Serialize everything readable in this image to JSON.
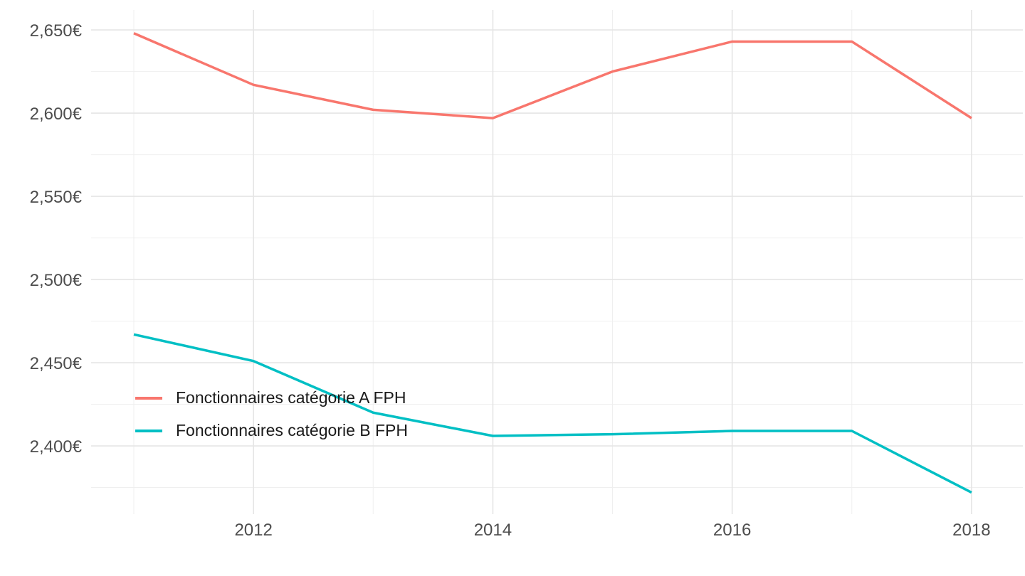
{
  "chart_data": {
    "type": "line",
    "title": "",
    "xlabel": "",
    "ylabel": "",
    "grid": true,
    "legend_position": "inside-left-middle",
    "x": [
      2011,
      2012,
      2013,
      2014,
      2015,
      2016,
      2017,
      2018
    ],
    "series": [
      {
        "name": "Fonctionnaires catégorie A FPH",
        "color": "#F8766D",
        "values": [
          2648,
          2617,
          2602,
          2597,
          2625,
          2643,
          2643,
          2597
        ]
      },
      {
        "name": "Fonctionnaires catégorie B FPH",
        "color": "#00BFC4",
        "values": [
          2467,
          2451,
          2420,
          2406,
          2407,
          2409,
          2409,
          2372
        ]
      }
    ],
    "x_axis": {
      "range": [
        2010.643,
        2018.429
      ],
      "major_ticks": [
        2012,
        2014,
        2016,
        2018
      ],
      "minor_ticks": [
        2011,
        2013,
        2015,
        2017
      ],
      "tick_labels": [
        "2012",
        "2014",
        "2016",
        "2018"
      ]
    },
    "y_axis": {
      "range": [
        2359,
        2662
      ],
      "major_ticks": [
        2400,
        2450,
        2500,
        2550,
        2600,
        2650
      ],
      "minor_ticks": [
        2375,
        2425,
        2475,
        2525,
        2575,
        2625
      ],
      "tick_labels": [
        "2,400€",
        "2,450€",
        "2,500€",
        "2,550€",
        "2,600€",
        "2,650€"
      ]
    }
  },
  "colors": {
    "background": "#ffffff",
    "grid_major": "#e5e5e5",
    "grid_minor": "#efefef",
    "axis_text": "#4d4d4d",
    "legend_text": "#1a1a1a"
  }
}
